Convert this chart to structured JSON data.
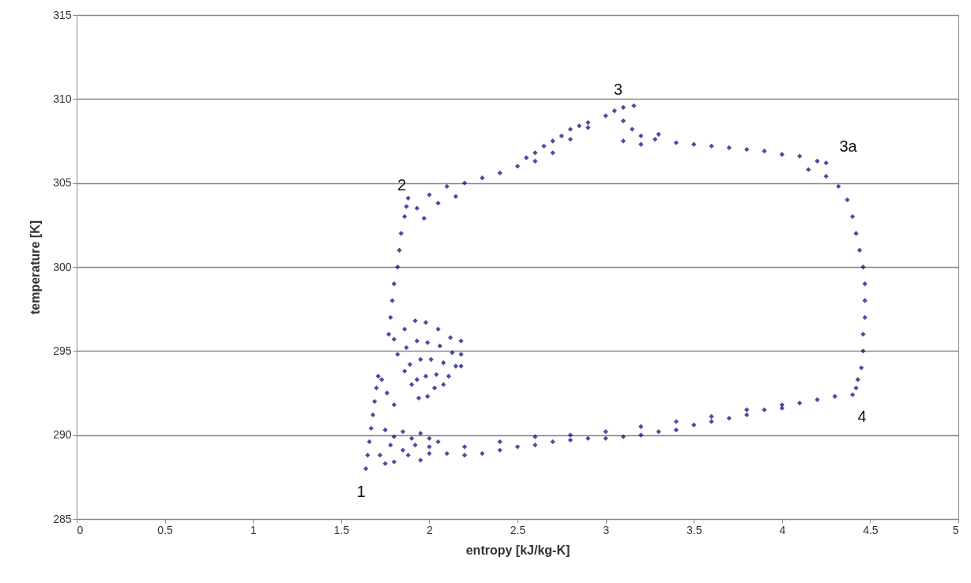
{
  "chart_data": {
    "type": "scatter",
    "xlabel": "entropy [kJ/kg-K]",
    "ylabel": "temperature [K]",
    "marker": "diamond",
    "grid": "y",
    "xlim": [
      0,
      5
    ],
    "xticks": [
      0,
      0.5,
      1,
      1.5,
      2,
      2.5,
      3,
      3.5,
      4,
      4.5,
      5
    ],
    "ylim": [
      285,
      315
    ],
    "yticks": [
      285,
      290,
      295,
      300,
      305,
      310,
      315
    ],
    "annotations": [
      {
        "text": "1",
        "x": 1.64,
        "y": 288
      },
      {
        "text": "2",
        "x": 1.88,
        "y": 304.1
      },
      {
        "text": "3",
        "x": 3.16,
        "y": 309.6
      },
      {
        "text": "3a",
        "x": 4.25,
        "y": 306.2
      },
      {
        "text": "4",
        "x": 4.4,
        "y": 292.4
      }
    ],
    "series": [
      {
        "color": "#000080",
        "x": [
          1.64,
          1.65,
          1.66,
          1.67,
          1.68,
          1.69,
          1.7,
          1.71,
          1.77,
          1.78,
          1.79,
          1.8,
          1.82,
          1.83,
          1.84,
          1.86,
          1.87,
          1.88,
          1.93,
          1.97,
          2.0,
          2.05,
          2.1,
          2.15,
          2.2,
          2.3,
          2.4,
          2.5,
          2.55,
          2.6,
          2.65,
          2.7,
          2.75,
          2.8,
          2.85,
          2.9,
          3.0,
          3.05,
          3.1,
          3.16,
          2.6,
          2.7,
          2.8,
          2.9,
          3.1,
          3.15,
          3.2,
          3.1,
          3.2,
          3.28,
          3.3,
          3.4,
          3.5,
          3.6,
          3.7,
          3.8,
          3.9,
          4.0,
          4.1,
          4.2,
          4.25,
          4.15,
          4.25,
          4.32,
          4.37,
          4.4,
          4.42,
          4.44,
          4.46,
          4.47,
          4.47,
          4.47,
          4.46,
          4.46,
          4.45,
          4.43,
          4.42,
          4.4,
          4.3,
          4.2,
          4.1,
          4.0,
          3.9,
          3.8,
          3.7,
          3.6,
          3.5,
          3.4,
          3.3,
          3.2,
          3.1,
          3.0,
          2.9,
          2.8,
          2.7,
          2.6,
          2.5,
          2.4,
          2.3,
          2.2,
          2.1,
          2.0,
          3.0,
          3.2,
          3.4,
          3.6,
          3.8,
          4.0,
          2.6,
          2.8,
          2.4,
          2.2,
          1.75,
          1.8,
          1.85,
          1.9,
          1.95,
          2.0,
          1.78,
          1.85,
          1.92,
          2.0,
          1.72,
          1.8,
          1.88,
          1.95,
          2.05,
          1.75,
          1.8,
          1.82,
          1.86,
          1.9,
          1.94,
          1.86,
          1.87,
          1.89,
          1.93,
          1.99,
          1.92,
          1.93,
          1.95,
          1.98,
          2.03,
          1.98,
          1.99,
          2.01,
          2.04,
          2.08,
          2.05,
          2.06,
          2.08,
          2.11,
          2.12,
          2.13,
          2.15,
          2.18,
          2.18,
          2.18,
          1.73,
          1.76,
          1.8
        ],
        "values": [
          288,
          288.8,
          289.6,
          290.4,
          291.2,
          292,
          292.8,
          293.5,
          296,
          297,
          298,
          299,
          300,
          301,
          302,
          303,
          303.6,
          304.1,
          303.5,
          302.9,
          304.3,
          303.8,
          304.8,
          304.2,
          305,
          305.3,
          305.6,
          306,
          306.5,
          306.8,
          307.2,
          307.5,
          307.8,
          308.2,
          308.4,
          308.6,
          309,
          309.3,
          309.5,
          309.6,
          306.3,
          306.8,
          307.6,
          308.3,
          308.7,
          308.2,
          307.8,
          307.5,
          307.3,
          307.6,
          307.9,
          307.4,
          307.3,
          307.2,
          307.1,
          307,
          306.9,
          306.7,
          306.6,
          306.3,
          306.2,
          305.8,
          305.4,
          304.8,
          304,
          303,
          302,
          301,
          300,
          299,
          298,
          297,
          296,
          295,
          294,
          293.3,
          292.8,
          292.4,
          292.3,
          292.1,
          291.9,
          291.6,
          291.5,
          291.2,
          291,
          290.8,
          290.6,
          290.3,
          290.2,
          290,
          289.9,
          289.8,
          289.8,
          289.7,
          289.6,
          289.4,
          289.3,
          289.1,
          288.9,
          288.8,
          288.9,
          288.9,
          290.2,
          290.5,
          290.8,
          291.1,
          291.5,
          291.8,
          289.9,
          290,
          289.6,
          289.3,
          290.3,
          289.9,
          290.2,
          289.8,
          290.1,
          289.8,
          289.4,
          289.1,
          289.4,
          289.3,
          288.8,
          288.4,
          288.8,
          288.5,
          289.6,
          288.3,
          295.7,
          294.8,
          293.8,
          293,
          292.2,
          296.3,
          295.2,
          294.2,
          293.3,
          292.3,
          296.8,
          295.6,
          294.5,
          293.5,
          292.8,
          296.7,
          295.5,
          294.5,
          293.6,
          293,
          296.3,
          295.3,
          294.3,
          293.5,
          295.8,
          294.9,
          294.1,
          295.6,
          294.8,
          294.1,
          293.3,
          292.5,
          291.8
        ]
      }
    ]
  }
}
